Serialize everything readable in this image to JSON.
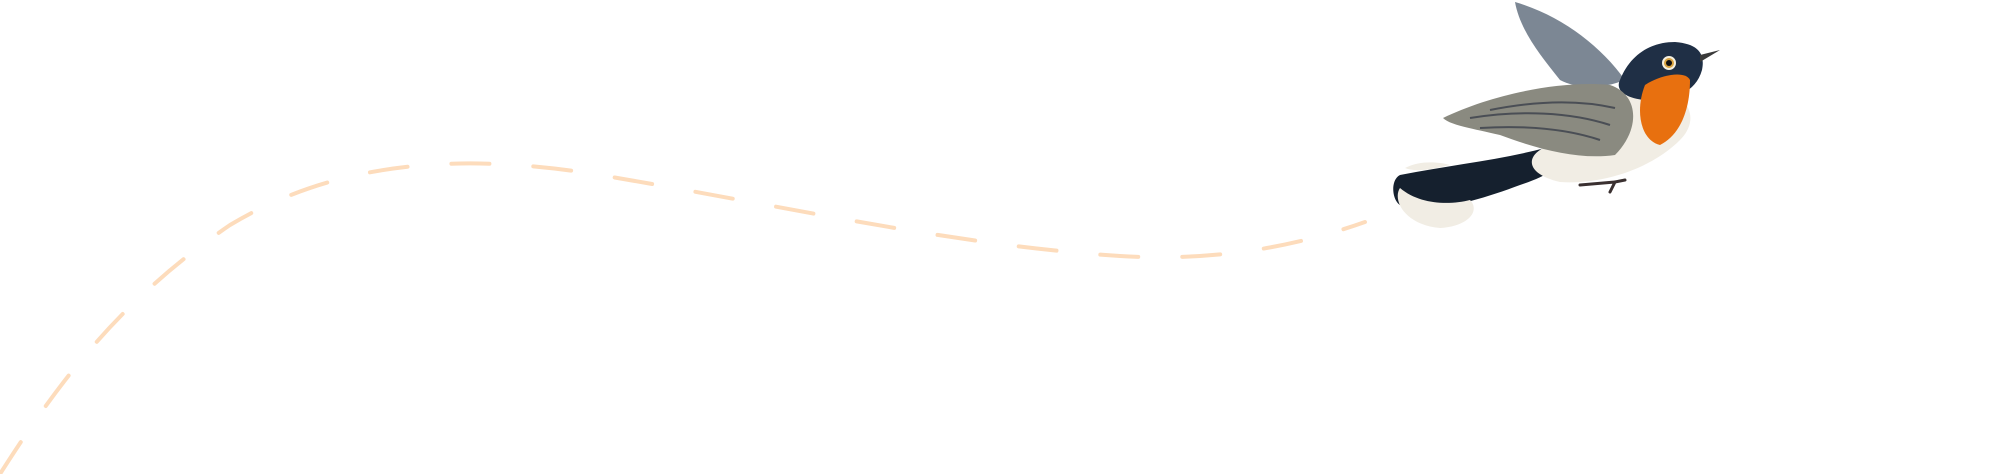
{
  "illustration": {
    "subject": "bird-illustration",
    "flight_path": {
      "style": "dashed",
      "color": "#fddcbc"
    },
    "colors": {
      "background": "#ffffff",
      "bird_head": "#1f2f45",
      "bird_throat": "#e8700f",
      "bird_wing": "#8a8a80",
      "bird_belly": "#f1ede4",
      "bird_tail": "#15202e"
    }
  }
}
